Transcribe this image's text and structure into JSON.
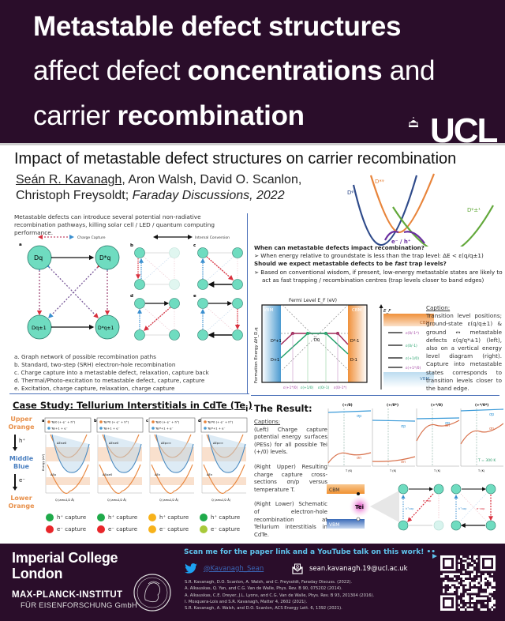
{
  "header": {
    "line1": "Metastable defect structures",
    "line2_pre": "affect defect ",
    "line2_bold": "concentrations",
    "line2_post": " and",
    "line3_pre": "carrier ",
    "line3_bold": "recombination",
    "logo": "UCL"
  },
  "paper": {
    "title": "Impact of metastable defect structures on carrier recombination",
    "first_author": "Seán R. Kavanagh",
    "coauthors_line1": ", Aron Walsh, David O. Scanlon,",
    "coauthors_line2": "Christoph Freysoldt; ",
    "journal": "Faraday Discussions, 2022"
  },
  "top_pes": {
    "labels": [
      "Dᵠ",
      "D*ᵠ",
      "Dᵠ±¹",
      "e⁻ / h⁺"
    ]
  },
  "intro": {
    "text": "Metastable defects can introduce several potential non-radiative recombination pathways, killing solar cell / LED / quantum computing performance."
  },
  "graph_network": {
    "legend_capture": "Charge Capture",
    "legend_conversion": "Internal Conversion",
    "panel_letters": [
      "a",
      "b",
      "c",
      "d",
      "e"
    ],
    "nodes": [
      "Dq",
      "D*q",
      "Dq±1",
      "D*q±1"
    ],
    "captions": [
      "a. Graph network of possible recombination paths",
      "b. Standard, two-step (SRH) electron-hole recombination",
      "c. Charge capture into a metastable defect, relaxation, capture back",
      "d. Thermal/Photo-excitation to metastable defect, capture, capture",
      "e. Excitation, charge capture, relaxation, charge capture"
    ]
  },
  "questions": {
    "q1": "When can metastable defects impact recombination?",
    "a1": "➢ When energy relative to groundstate is less than the trap level: ΔE < ε(q/q±1)",
    "q2_pre": "Should we expect metastable defects to be ",
    "q2_em": "fast",
    "q2_post": " trap levels?",
    "a2": "➢ Based on conventional wisdom, if present, low-energy metastable states are likely to act as fast trapping / recombination centres (trap levels closer to band edges)"
  },
  "fermi_plot": {
    "xlabel": "Fermi Level E_F (eV)",
    "ylabel": "Formation Energy ΔH_D,q",
    "vbm": "VBM",
    "cbm": "CBM",
    "state_labels": [
      "D*+1",
      "D+1",
      "D0",
      "D*-1",
      "D-1"
    ],
    "transition_labels": [
      "ε(+1*/0)",
      "ε(+1/0)",
      "ε(0/-1)",
      "ε(0/-1*)"
    ]
  },
  "level_diagram": {
    "axis": "E_F",
    "cbm": "CBM",
    "vbm": "VBM",
    "levels": [
      "ε(0/-1*)",
      "ε(0/-1)",
      "ε(+1/0)",
      "ε(+1*/0)"
    ]
  },
  "fermi_caption": {
    "heading": "Caption:",
    "text": "Transition level positions; ground-state ε(q/q±1) & ground ↔ metastable defects ε(q/q*±1) (left), also on a vertical energy level diagram (right). Capture into metastable states corresponds to transition levels closer to the band edge."
  },
  "case_study": {
    "title": "Case Study: Tellurium Interstitials in CdTe (Te",
    "title_sub": "i",
    "title_end": ")",
    "side": {
      "upper": [
        "Upper",
        "Orange"
      ],
      "hole": "h⁺",
      "middle": [
        "Middle",
        "Blue"
      ],
      "electron": "e⁻",
      "lower": [
        "Lower",
        "Orange"
      ]
    },
    "panels": [
      {
        "letter": "a",
        "leg1": "Tei0 (+ e⁻ + h⁺)",
        "leg2": "Tei+1 + e⁻",
        "ann1": "ΔEn≥0",
        "ann2": "ΔEp"
      },
      {
        "letter": "b",
        "leg1": "Tei*0 (+ e⁻ + h⁺)",
        "leg2": "Tei+1 + e⁻",
        "ann1": "ΔEn≥0",
        "ann2": "ΔEp≥0"
      },
      {
        "letter": "c",
        "leg1": "Tei0 (+ e⁻ + h⁺)",
        "leg2": "Tei*+1 + e⁻",
        "ann1": "ΔEp≈∞",
        "ann2": "ΔEn"
      },
      {
        "letter": "d",
        "leg1": "Tei*0 (+ e⁻ + h⁺)",
        "leg2": "Tei*+1 + e⁻",
        "ann1": "ΔEp≈∞",
        "ann2": "ΔEn"
      }
    ],
    "xlabel": "Q (amu1/2 Å)",
    "ylabel": "Energy (eV)",
    "captures": [
      {
        "h": "h⁺ capture",
        "h_color": "#1faa4a",
        "e": "e⁻ capture",
        "e_color": "#e8262a"
      },
      {
        "h": "h⁺ capture",
        "h_color": "#1faa4a",
        "e": "e⁻ capture",
        "e_color": "#e8262a"
      },
      {
        "h": "h⁺ capture",
        "h_color": "#f7b21b",
        "e": "e⁻ capture",
        "e_color": "#f7b21b"
      },
      {
        "h": "h⁺ capture",
        "h_color": "#1faa4a",
        "e": "e⁻ capture",
        "e_color": "#a8c93a"
      }
    ]
  },
  "result": {
    "title": "The Result:",
    "captions_heading": "Captions:",
    "left": "(Left) Charge capture potential energy surfaces (PESs) for all possible Tei (+/0) levels.",
    "right_upper": "(Right Upper) Resulting charge capture cross-sections σn/p versus temperature T.",
    "right_lower": "(Right Lower) Schematic of electron-hole recombination at Tellurium interstitials in CdTe.",
    "sigma_panels": [
      "(+/0)",
      "(+/0*)",
      "(+*/0)",
      "(+*/0*)"
    ],
    "sigma_p": "σp",
    "sigma_n": "σn",
    "xlabel": "T (K)",
    "temperature_note": "T = 300 K",
    "schematic": {
      "cbm": "CBM",
      "vbm": "VBM",
      "defect": "Tei",
      "e_cap": "e⁻cap",
      "h_cap": "h⁺cap"
    }
  },
  "footer": {
    "imperial_1": "Imperial College",
    "imperial_2": "London",
    "mpi_1": "MAX-PLANCK-INSTITUT",
    "mpi_2": "FÜR EISENFORSCHUNG GmbH",
    "scan": "Scan me for the paper link and a YouTube talk on this work! ••",
    "twitter": "@Kavanagh_Sean",
    "email": "sean.kavanagh.19@ucl.ac.uk",
    "references": [
      "S.R. Kavanagh, D.O. Scanlon, A. Walsh, and C. Freysoldt, Faraday Discuss. (2022).",
      "A. Alkauskas, Q. Yan, and C.G. Van de Walle, Phys. Rev. B 90, 075202 (2014).",
      "A. Alkauskas, C.E. Dreyer, J.L. Lyons, and C.G. Van de Walle, Phys. Rev. B 93, 201304 (2016).",
      "I. Mosquera-Lois and S.R. Kavanagh, Matter 4, 2602 (2021).",
      "S.R. Kavanagh, A. Walsh, and D.O. Scanlon, ACS Energy Lett. 6, 1392 (2021)."
    ]
  },
  "colors": {
    "header_bg": "#2a0d2a",
    "node": "#6fdcc0",
    "capture_red": "#d9303e",
    "capture_blue": "#3a8fd0",
    "orange": "#e8904a",
    "blue": "#4a9ad0",
    "green": "#5aa840",
    "purple": "#6a2fa0",
    "link": "#5fc4ee"
  }
}
